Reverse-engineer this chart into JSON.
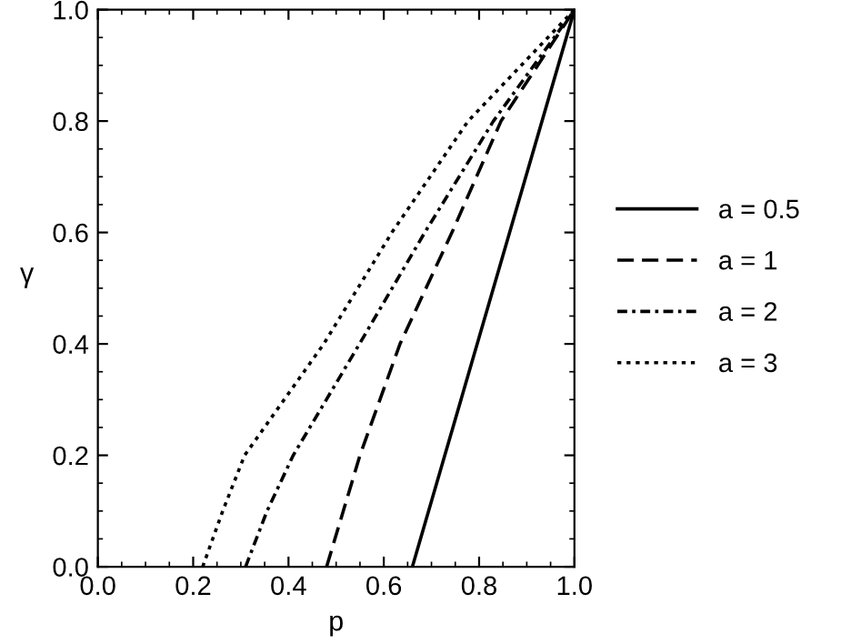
{
  "chart_data": {
    "type": "line",
    "xlabel": "p",
    "ylabel": "γ",
    "xlim": [
      0,
      1
    ],
    "ylim": [
      0,
      1
    ],
    "xticks": [
      {
        "value": 0,
        "label": "0.0"
      },
      {
        "value": 0.2,
        "label": "0.2"
      },
      {
        "value": 0.4,
        "label": "0.4"
      },
      {
        "value": 0.6,
        "label": "0.6"
      },
      {
        "value": 0.8,
        "label": "0.8"
      },
      {
        "value": 1,
        "label": "1.0"
      }
    ],
    "yticks": [
      {
        "value": 0,
        "label": "0.0"
      },
      {
        "value": 0.2,
        "label": "0.2"
      },
      {
        "value": 0.4,
        "label": "0.4"
      },
      {
        "value": 0.6,
        "label": "0.6"
      },
      {
        "value": 0.8,
        "label": "0.8"
      },
      {
        "value": 1,
        "label": "1.0"
      }
    ],
    "grid": false,
    "legend": "right",
    "marker": "none",
    "series": [
      {
        "name": "a = 0.5",
        "color": "#000000",
        "line_style": "solid",
        "x": [
          0.66,
          1.0
        ],
        "values": [
          0,
          1
        ]
      },
      {
        "name": "a = 1",
        "color": "#000000",
        "line_style": "dashed",
        "x": [
          0.48,
          0.55,
          0.634,
          0.743,
          0.846,
          1.0
        ],
        "values": [
          0,
          0.2,
          0.4,
          0.6,
          0.8,
          1
        ]
      },
      {
        "name": "a = 2",
        "color": "#000000",
        "line_style": "dashdot",
        "x": [
          0.31,
          0.355,
          0.41,
          0.549,
          0.686,
          0.83,
          1.0
        ],
        "values": [
          0,
          0.1,
          0.2,
          0.4,
          0.6,
          0.8,
          1
        ]
      },
      {
        "name": "a = 3",
        "color": "#000000",
        "line_style": "dotted",
        "x": [
          0.22,
          0.262,
          0.308,
          0.474,
          0.617,
          0.777,
          1.0
        ],
        "values": [
          0,
          0.1,
          0.2,
          0.4,
          0.6,
          0.8,
          1
        ]
      }
    ]
  }
}
